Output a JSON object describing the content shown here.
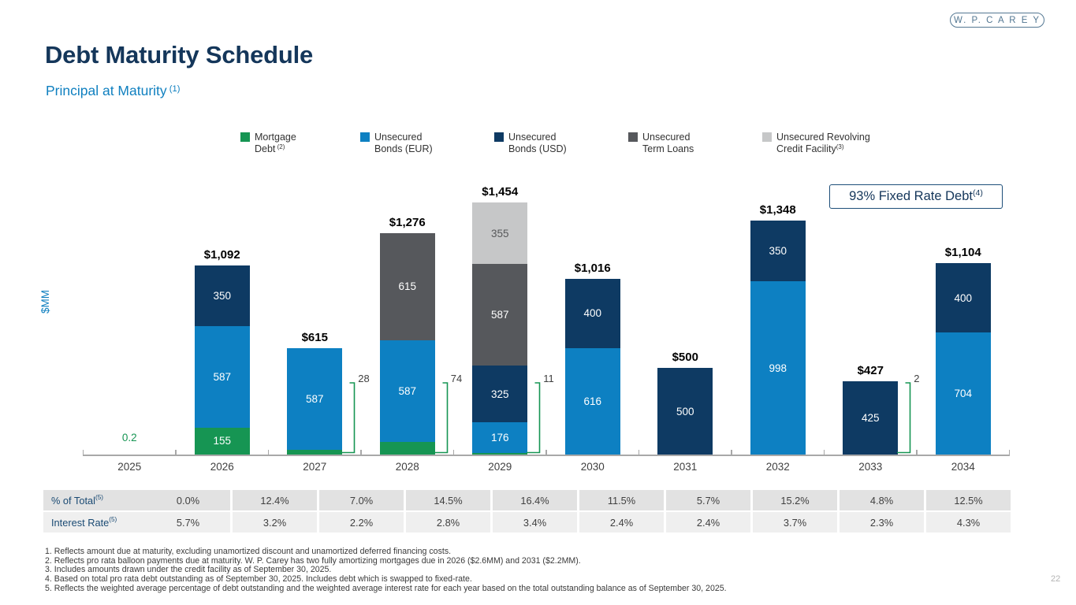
{
  "page": {
    "number": "22"
  },
  "logo": {
    "text": "W. P. C A R E Y"
  },
  "header": {
    "title": "Debt Maturity Schedule",
    "subtitle": {
      "text": "Principal at Maturity",
      "sup": " (1)"
    }
  },
  "fixed_rate_box": {
    "text": "93% Fixed Rate Debt",
    "sup": " (4)"
  },
  "chart_data": {
    "type": "stacked-bar",
    "title": "Debt Maturity Schedule — Principal at Maturity",
    "ylabel": "$MM",
    "xlabel": "",
    "grid": false,
    "legend_position": "top",
    "categories": [
      "2025",
      "2026",
      "2027",
      "2028",
      "2029",
      "2030",
      "2031",
      "2032",
      "2033",
      "2034"
    ],
    "series": [
      {
        "name": "Mortgage Debt",
        "sup": " (2)",
        "color": "#169553",
        "values": [
          0.2,
          155,
          28,
          74,
          11,
          0,
          0,
          0,
          2,
          0
        ]
      },
      {
        "name": "Unsecured Bonds (EUR)",
        "sup": "",
        "color": "#0d80c2",
        "values": [
          0,
          587,
          587,
          587,
          176,
          616,
          0,
          998,
          0,
          704
        ]
      },
      {
        "name": "Unsecured Bonds (USD)",
        "sup": "",
        "color": "#0e3a63",
        "values": [
          0,
          350,
          0,
          0,
          325,
          400,
          500,
          350,
          425,
          400
        ]
      },
      {
        "name": "Unsecured Term Loans",
        "sup": "",
        "color": "#56585c",
        "values": [
          0,
          0,
          0,
          615,
          587,
          0,
          0,
          0,
          0,
          0
        ]
      },
      {
        "name": "Unsecured Revolving Credit Facility",
        "sup": "(3)",
        "color": "#c6c7c8",
        "values": [
          0,
          0,
          0,
          0,
          355,
          0,
          0,
          0,
          0,
          0
        ]
      }
    ],
    "bar_totals": [
      "0.2",
      "$1,092",
      "$615",
      "$1,276",
      "$1,454",
      "$1,016",
      "$500",
      "$1,348",
      "$427",
      "$1,104"
    ],
    "callouts": [
      {
        "category": "2027",
        "label": "28"
      },
      {
        "category": "2028",
        "label": "74"
      },
      {
        "category": "2029",
        "label": "11"
      },
      {
        "category": "2033",
        "label": "2"
      }
    ]
  },
  "legend": {
    "items": [
      {
        "line1": "Mortgage",
        "line2": "Debt",
        "sup": " (2)",
        "series": 0
      },
      {
        "line1": "Unsecured",
        "line2": "Bonds (EUR)",
        "sup": "",
        "series": 1
      },
      {
        "line1": "Unsecured",
        "line2": "Bonds (USD)",
        "sup": "",
        "series": 2
      },
      {
        "line1": "Unsecured",
        "line2": "Term Loans",
        "sup": "",
        "series": 3
      },
      {
        "line1": "Unsecured Revolving",
        "line2": "Credit Facility",
        "sup": "(3)",
        "series": 4
      }
    ]
  },
  "table": {
    "rows": [
      {
        "label": "% of Total",
        "sup": " (5)",
        "values": [
          "0.0%",
          "12.4%",
          "7.0%",
          "14.5%",
          "16.4%",
          "11.5%",
          "5.7%",
          "15.2%",
          "4.8%",
          "12.5%"
        ]
      },
      {
        "label": "Interest Rate",
        "sup": " (5)",
        "values": [
          "5.7%",
          "3.2%",
          "2.2%",
          "2.8%",
          "3.4%",
          "2.4%",
          "2.4%",
          "3.7%",
          "2.3%",
          "4.3%"
        ]
      }
    ]
  },
  "footnotes": [
    "1. Reflects amount due at maturity, excluding unamortized discount and unamortized deferred financing costs.",
    "2. Reflects pro rata balloon payments due at maturity. W. P. Carey has two fully amortizing mortgages due in 2026 ($2.6MM) and 2031 ($2.2MM).",
    "3. Includes amounts drawn under the credit facility as of September 30, 2025.",
    "4. Based on total pro rata debt outstanding as of September 30, 2025. Includes debt which is swapped to fixed-rate.",
    "5. Reflects the weighted average percentage of debt outstanding and the weighted average interest rate for each year based on the total outstanding balance as of September 30, 2025."
  ],
  "colors": {
    "title_navy": "#14365a",
    "accent_blue": "#1080c0",
    "green": "#169553",
    "axis_gray": "#a8a8a8",
    "text_dark": "#404040",
    "box_border_navy": "#1d4e79",
    "table_row1_bg": "#e2e2e2",
    "table_row2_bg": "#efefef",
    "logo_blue": "#537792"
  }
}
